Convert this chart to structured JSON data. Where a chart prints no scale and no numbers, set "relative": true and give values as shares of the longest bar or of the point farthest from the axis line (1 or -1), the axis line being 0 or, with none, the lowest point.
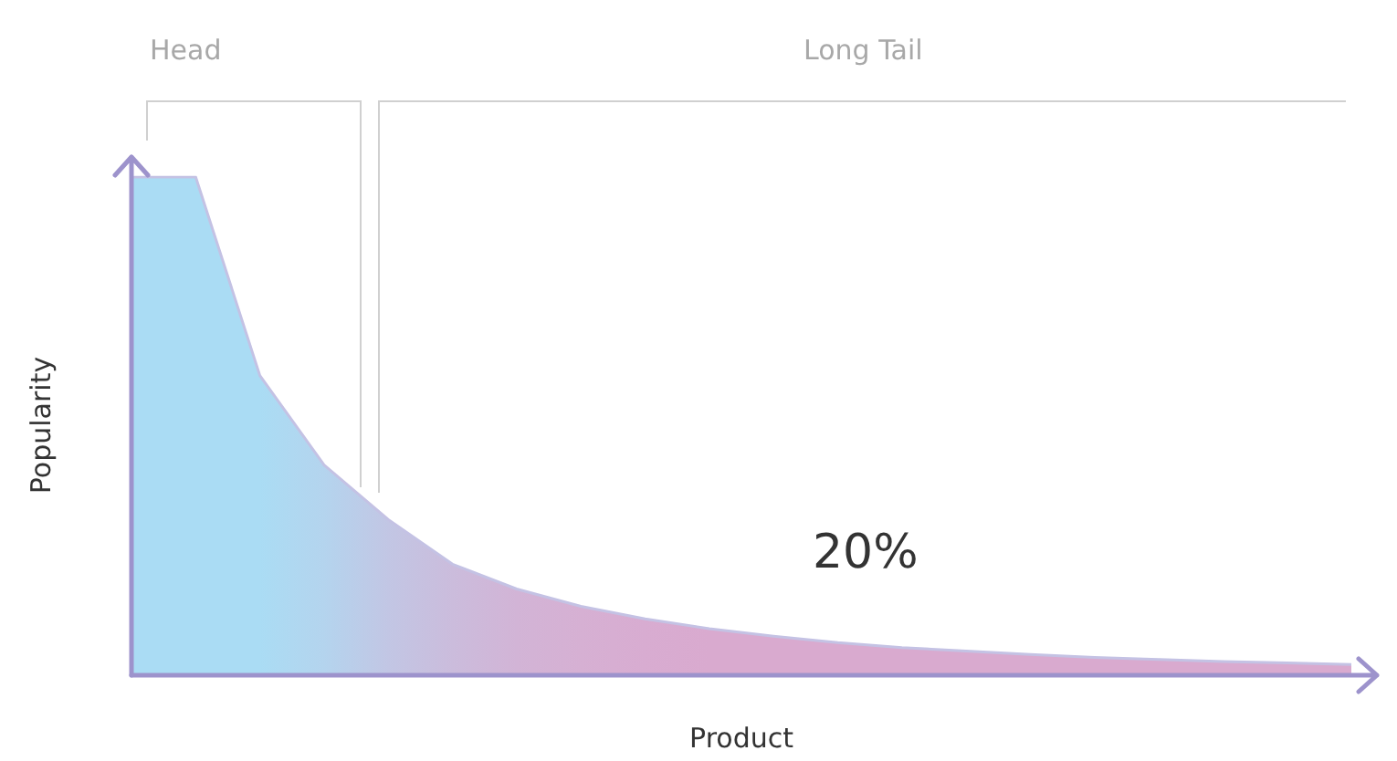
{
  "chart_data": {
    "type": "area",
    "relative": true,
    "xlabel": "Product",
    "ylabel": "Popularity",
    "annotations": [
      "Head",
      "Long Tail",
      "20%"
    ],
    "categories": [
      null,
      null,
      null,
      null,
      null,
      null,
      null,
      null,
      null,
      null,
      null,
      null,
      null,
      null,
      null,
      null,
      null,
      null,
      null,
      null
    ],
    "values": [
      1,
      1,
      0.6,
      0.42,
      0.31,
      0.22,
      0.17,
      0.135,
      0.11,
      0.09,
      0.075,
      0.062,
      0.052,
      0.045,
      0.038,
      0.032,
      0.028,
      0.024,
      0.021,
      0.018
    ],
    "colors": [
      "#aadcf4",
      "#aadcf4",
      "#aadcf4",
      "#b4d4ee",
      "#c2c6e4",
      "#cbbcdc",
      "#d2b4d6",
      "#d6b0d3",
      "#d8acd1",
      "#d9aacf",
      "#d9aacf",
      "#d9aacf",
      "#d9aacf",
      "#d9aacf",
      "#d9aacf",
      "#d9aacf",
      "#d9aacf",
      "#d9aacf",
      "#d9aacf",
      "#d9aacf"
    ],
    "color": "#c4c2e4",
    "grid": false
  }
}
